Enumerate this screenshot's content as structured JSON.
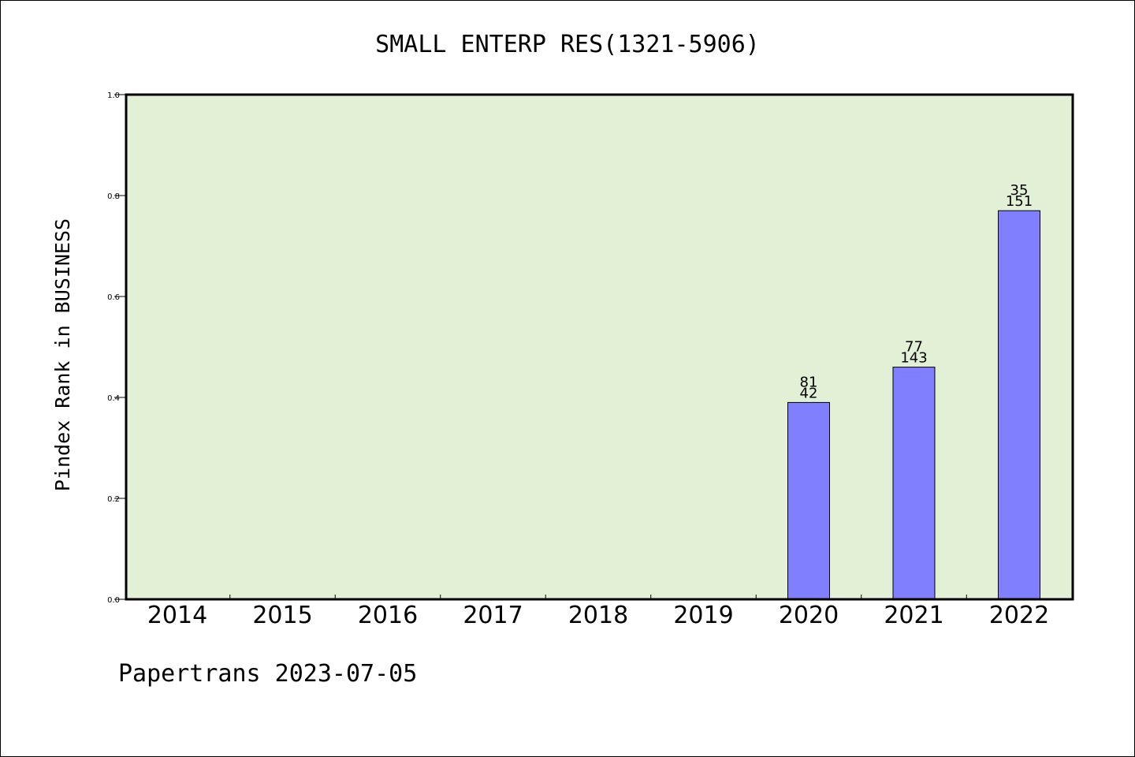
{
  "chart_data": {
    "type": "bar",
    "title": "SMALL ENTERP RES(1321-5906)",
    "xlabel": "",
    "ylabel": "Pindex Rank in BUSINESS",
    "footer": "Papertrans 2023-07-05",
    "ylim": [
      0,
      1.0
    ],
    "yticks": [
      "0.0",
      "0.2",
      "0.4",
      "0.6",
      "0.8",
      "1.0"
    ],
    "categories": [
      "2014",
      "2015",
      "2016",
      "2017",
      "2018",
      "2019",
      "2020",
      "2021",
      "2022"
    ],
    "values": [
      null,
      null,
      null,
      null,
      null,
      null,
      0.39,
      0.46,
      0.77
    ],
    "labels_top": [
      "",
      "",
      "",
      "",
      "",
      "",
      "81",
      "77",
      "35"
    ],
    "labels_bottom": [
      "",
      "",
      "",
      "",
      "",
      "",
      "42",
      "143",
      "151"
    ],
    "grid": false,
    "legend": "none"
  },
  "colors": {
    "plot_background": "#e2f0d6",
    "bar_fill": "#8080ff",
    "bar_stroke": "#000000",
    "axis": "#000000"
  }
}
